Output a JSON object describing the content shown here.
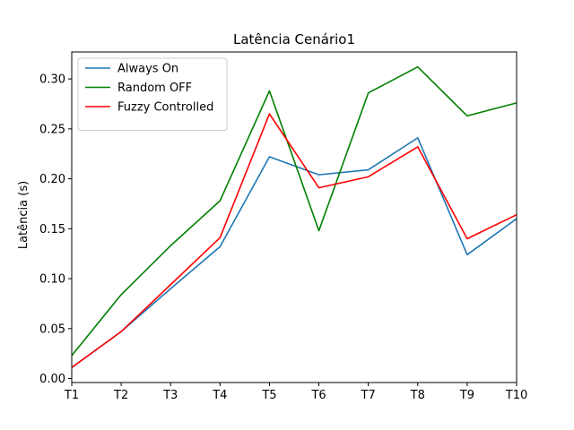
{
  "chart_data": {
    "type": "line",
    "title": "Latência Cenário1",
    "xlabel": "",
    "ylabel": "Latência (s)",
    "categories": [
      "T1",
      "T2",
      "T3",
      "T4",
      "T5",
      "T6",
      "T7",
      "T8",
      "T9",
      "T10"
    ],
    "ylim": [
      -0.004,
      0.327
    ],
    "yticks": [
      "0.00",
      "0.05",
      "0.10",
      "0.15",
      "0.20",
      "0.25",
      "0.30"
    ],
    "ytick_values": [
      0.0,
      0.05,
      0.1,
      0.15,
      0.2,
      0.25,
      0.3
    ],
    "grid": false,
    "legend_position": "top-left",
    "series": [
      {
        "name": "Always On",
        "color": "#1f77b4",
        "values": [
          0.011,
          0.047,
          0.09,
          0.132,
          0.222,
          0.204,
          0.209,
          0.241,
          0.124,
          0.16
        ]
      },
      {
        "name": "Random OFF",
        "color": "#008000",
        "values": [
          0.023,
          0.084,
          0.133,
          0.178,
          0.288,
          0.148,
          0.286,
          0.312,
          0.263,
          0.276
        ]
      },
      {
        "name": "Fuzzy Controlled",
        "color": "#ff0000",
        "values": [
          0.011,
          0.047,
          0.094,
          0.141,
          0.265,
          0.191,
          0.202,
          0.232,
          0.14,
          0.164
        ]
      }
    ]
  }
}
